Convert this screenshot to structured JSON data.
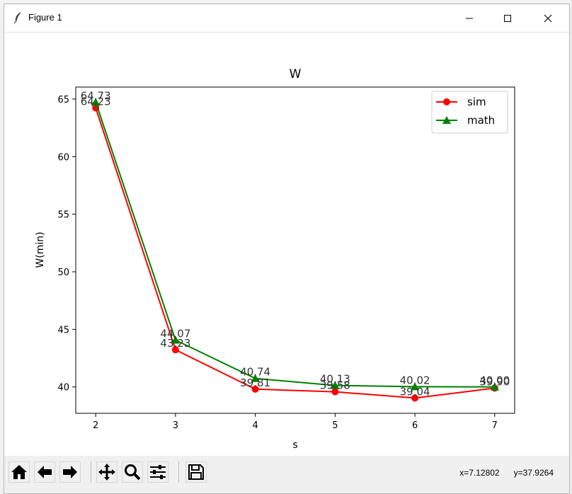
{
  "window": {
    "title": "Figure 1"
  },
  "toolbar": {
    "buttons": [
      "home-icon",
      "back-arrow-icon",
      "forward-arrow-icon",
      "pan-icon",
      "zoom-icon",
      "configure-subplots-icon",
      "save-icon"
    ],
    "coords_x": "x=7.12802",
    "coords_y": "y=37.9264"
  },
  "colors": {
    "sim": "#ff0000",
    "math": "#008000"
  },
  "chart_data": {
    "type": "line",
    "title": "W",
    "xlabel": "s",
    "ylabel": "W(min)",
    "x": [
      2,
      3,
      4,
      5,
      6,
      7
    ],
    "xlim": [
      1.75,
      7.25
    ],
    "ylim": [
      37.71,
      66.04
    ],
    "xticks": [
      2,
      3,
      4,
      5,
      6,
      7
    ],
    "yticks": [
      40,
      45,
      50,
      55,
      60,
      65
    ],
    "grid": false,
    "legend_position": "top-right",
    "series": [
      {
        "name": "sim",
        "marker": "circle",
        "values": [
          64.23,
          43.23,
          39.81,
          39.58,
          39.04,
          39.9
        ],
        "labels": [
          "64.23",
          "43.23",
          "39.81",
          "39.58",
          "39.04",
          "39.90"
        ]
      },
      {
        "name": "math",
        "marker": "triangle",
        "values": [
          64.73,
          44.07,
          40.74,
          40.13,
          40.02,
          40.0
        ],
        "labels": [
          "64.73",
          "44.07",
          "40.74",
          "40.13",
          "40.02",
          "40.00"
        ]
      }
    ]
  }
}
